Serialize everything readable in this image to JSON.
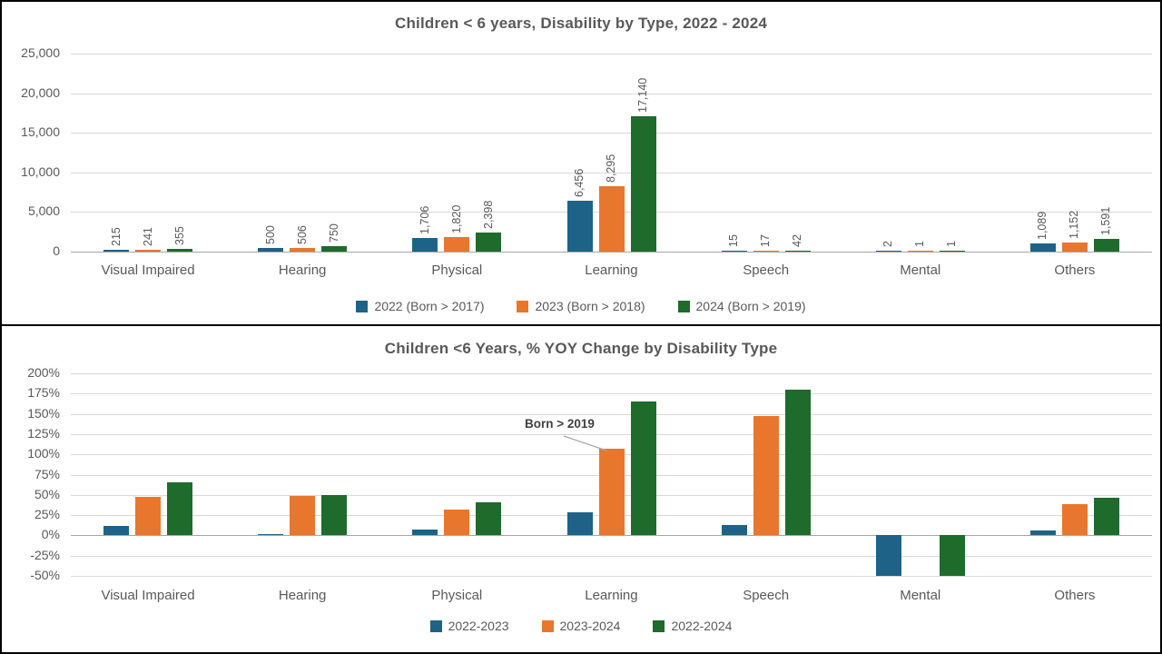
{
  "colors": {
    "blue": "#1E6387",
    "orange": "#E8772D",
    "green": "#1E6B2C",
    "text": "#595959",
    "title": "#595959",
    "gridline": "#D9D9D9",
    "axis": "#A6A6A6",
    "annotation_text": "#404040",
    "panel_border": "#000000",
    "background": "#FFFFFF"
  },
  "chart_data": [
    {
      "type": "bar",
      "title": "Children < 6 years, Disability by Type, 2022 - 2024",
      "categories": [
        "Visual Impaired",
        "Hearing",
        "Physical",
        "Learning",
        "Speech",
        "Mental",
        "Others"
      ],
      "series": [
        {
          "name": "2022 (Born > 2017)",
          "color_key": "blue",
          "values": [
            215,
            500,
            1706,
            6456,
            15,
            2,
            1089
          ]
        },
        {
          "name": "2023 (Born > 2018)",
          "color_key": "orange",
          "values": [
            241,
            506,
            1820,
            8295,
            17,
            1,
            1152
          ]
        },
        {
          "name": "2024 (Born > 2019)",
          "color_key": "green",
          "values": [
            355,
            750,
            2398,
            17140,
            42,
            1,
            1591
          ]
        }
      ],
      "ylim": [
        0,
        25000
      ],
      "ytick_step": 5000,
      "ytick_labels": [
        "0",
        "5,000",
        "10,000",
        "15,000",
        "20,000",
        "25,000"
      ],
      "data_labels": true,
      "grid": true,
      "legend_position": "bottom"
    },
    {
      "type": "bar",
      "title": "Children <6  Years, % YOY Change by Disability Type",
      "categories": [
        "Visual Impaired",
        "Hearing",
        "Physical",
        "Learning",
        "Speech",
        "Mental",
        "Others"
      ],
      "series": [
        {
          "name": "2022-2023",
          "color_key": "blue",
          "values": [
            12.1,
            1.2,
            6.7,
            28.5,
            13.3,
            -50,
            5.8
          ]
        },
        {
          "name": "2023-2024",
          "color_key": "orange",
          "values": [
            47.3,
            48.2,
            31.8,
            106.6,
            147.1,
            0,
            38.1
          ]
        },
        {
          "name": "2022-2024",
          "color_key": "green",
          "values": [
            65.1,
            50.0,
            40.6,
            165.5,
            180.0,
            -50,
            46.1
          ]
        }
      ],
      "ylim": [
        -50,
        200
      ],
      "ytick_step": 25,
      "ytick_labels": [
        "-50%",
        "-25%",
        "0%",
        "25%",
        "50%",
        "75%",
        "100%",
        "125%",
        "150%",
        "175%",
        "200%"
      ],
      "data_labels": false,
      "grid": true,
      "legend_position": "bottom",
      "annotation": {
        "text": "Born  > 2019",
        "category_index": 3,
        "series_index": 1
      }
    }
  ]
}
